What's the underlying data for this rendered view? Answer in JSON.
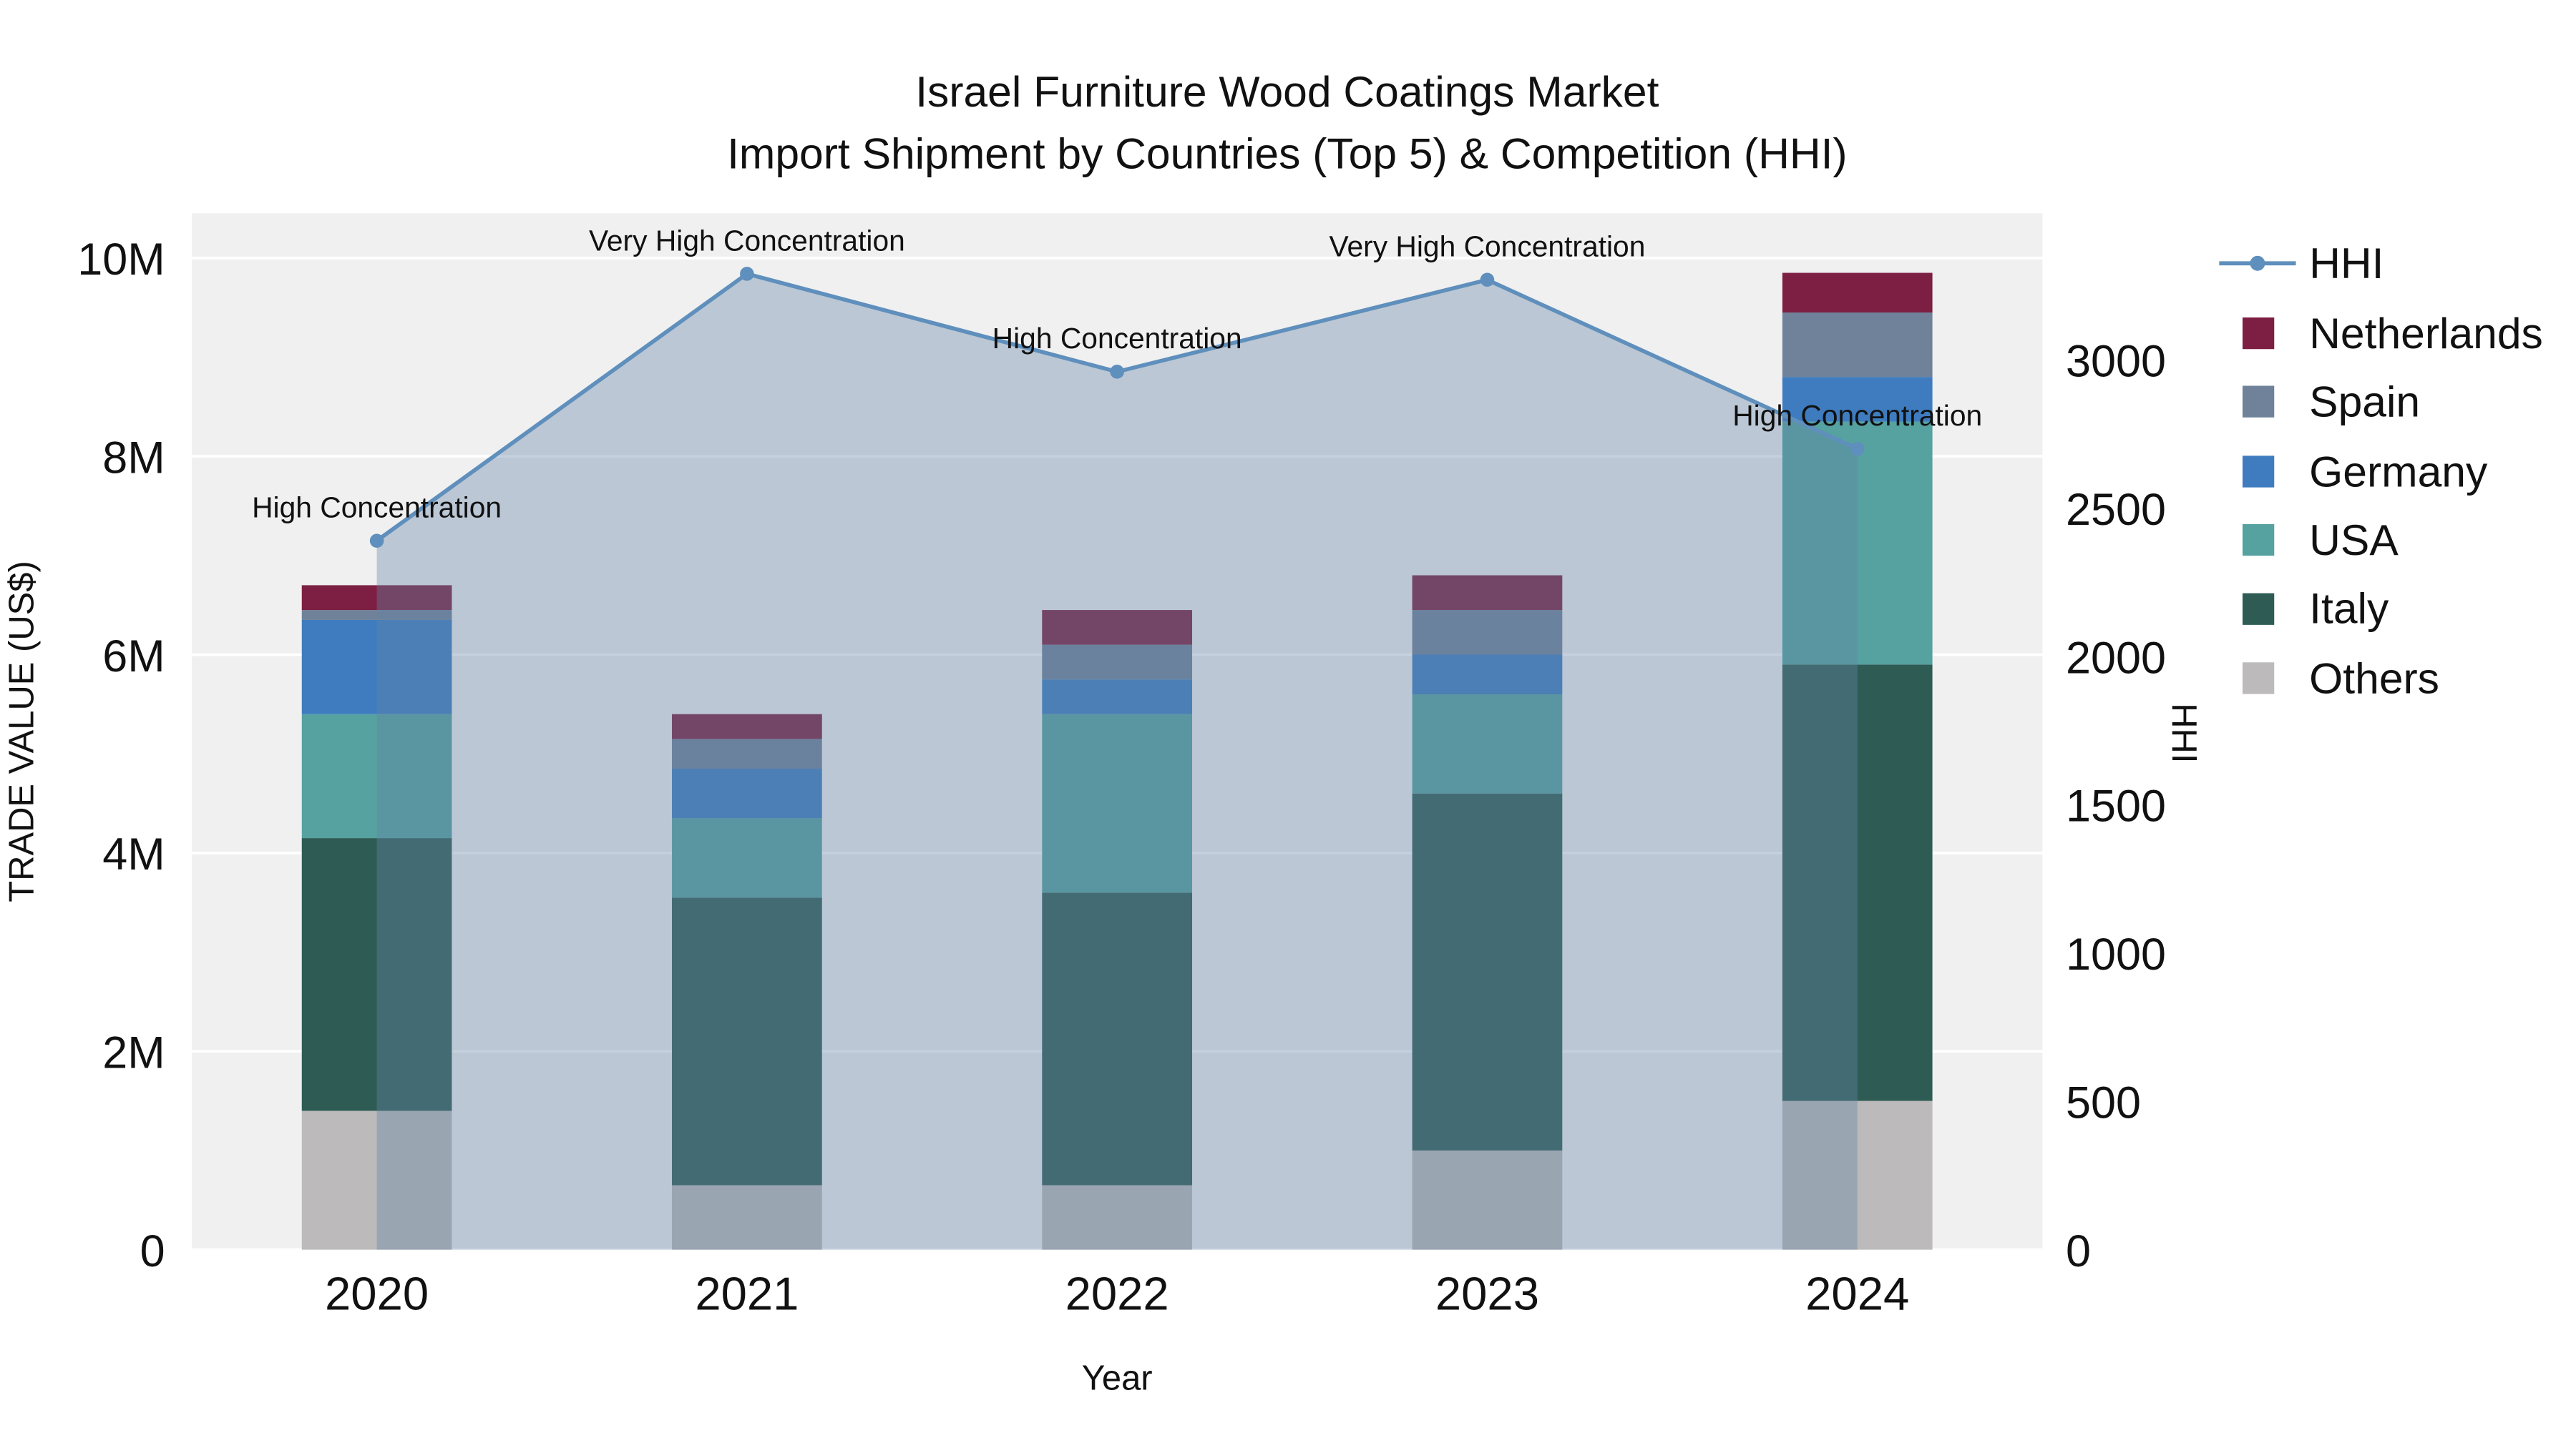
{
  "colors": {
    "figure_background": "#ffffff",
    "plot_background": "#f0f0f0",
    "gridline": "#ffffff",
    "text": "#111111",
    "hhi_line": "#5f8fbc",
    "hhi_area_fill": "rgba(100,132,165,0.38)"
  },
  "chart_data": {
    "type": "stacked-bar+line",
    "title_lines": [
      "Israel Furniture Wood Coatings Market",
      "Import Shipment by Countries (Top 5) & Competition (HHI)"
    ],
    "xlabel": "Year",
    "ylabel": "TRADE VALUE (US$)",
    "ylabel_right": "HHI",
    "categories": [
      "2020",
      "2021",
      "2022",
      "2023",
      "2024"
    ],
    "bar_series": [
      {
        "name": "Others",
        "color": "#bcbaba",
        "values": [
          1400000,
          650000,
          650000,
          1000000,
          1500000
        ]
      },
      {
        "name": "Italy",
        "color": "#2e5c55",
        "values": [
          2750000,
          2900000,
          2950000,
          3600000,
          4400000
        ]
      },
      {
        "name": "USA",
        "color": "#55a2a0",
        "values": [
          1250000,
          800000,
          1800000,
          1000000,
          2450000
        ]
      },
      {
        "name": "Germany",
        "color": "#3e7cbf",
        "values": [
          950000,
          500000,
          350000,
          400000,
          450000
        ]
      },
      {
        "name": "Spain",
        "color": "#6f8299",
        "values": [
          100000,
          300000,
          350000,
          450000,
          650000
        ]
      },
      {
        "name": "Netherlands",
        "color": "#7d1f42",
        "values": [
          250000,
          250000,
          350000,
          350000,
          400000
        ]
      }
    ],
    "line_series": {
      "name": "HHI",
      "axis": "right",
      "color": "#5f8fbc",
      "values": [
        2390,
        3290,
        2960,
        3270,
        2700
      ],
      "annotations": [
        "High Concentration",
        "Very High Concentration",
        "High Concentration",
        "Very High Concentration",
        "High Concentration"
      ]
    },
    "yaxis_left": {
      "tick_values": [
        0,
        2000000,
        4000000,
        6000000,
        8000000,
        10000000
      ],
      "tick_labels": [
        "0",
        "2M",
        "4M",
        "6M",
        "8M",
        "10M"
      ],
      "range": [
        0,
        10450000
      ]
    },
    "yaxis_right": {
      "tick_values": [
        0,
        500,
        1000,
        1500,
        2000,
        2500,
        3000
      ],
      "tick_labels": [
        "0",
        "500",
        "1000",
        "1500",
        "2000",
        "2500",
        "3000"
      ],
      "range": [
        0,
        3494
      ]
    },
    "grid": true,
    "legend": {
      "position": "top-right",
      "items": [
        {
          "label": "HHI",
          "type": "line",
          "color": "#5f8fbc"
        },
        {
          "label": "Netherlands",
          "type": "swatch",
          "color": "#7d1f42"
        },
        {
          "label": "Spain",
          "type": "swatch",
          "color": "#6f8299"
        },
        {
          "label": "Germany",
          "type": "swatch",
          "color": "#3e7cbf"
        },
        {
          "label": "USA",
          "type": "swatch",
          "color": "#55a2a0"
        },
        {
          "label": "Italy",
          "type": "swatch",
          "color": "#2e5c55"
        },
        {
          "label": "Others",
          "type": "swatch",
          "color": "#bcbaba"
        }
      ]
    }
  }
}
